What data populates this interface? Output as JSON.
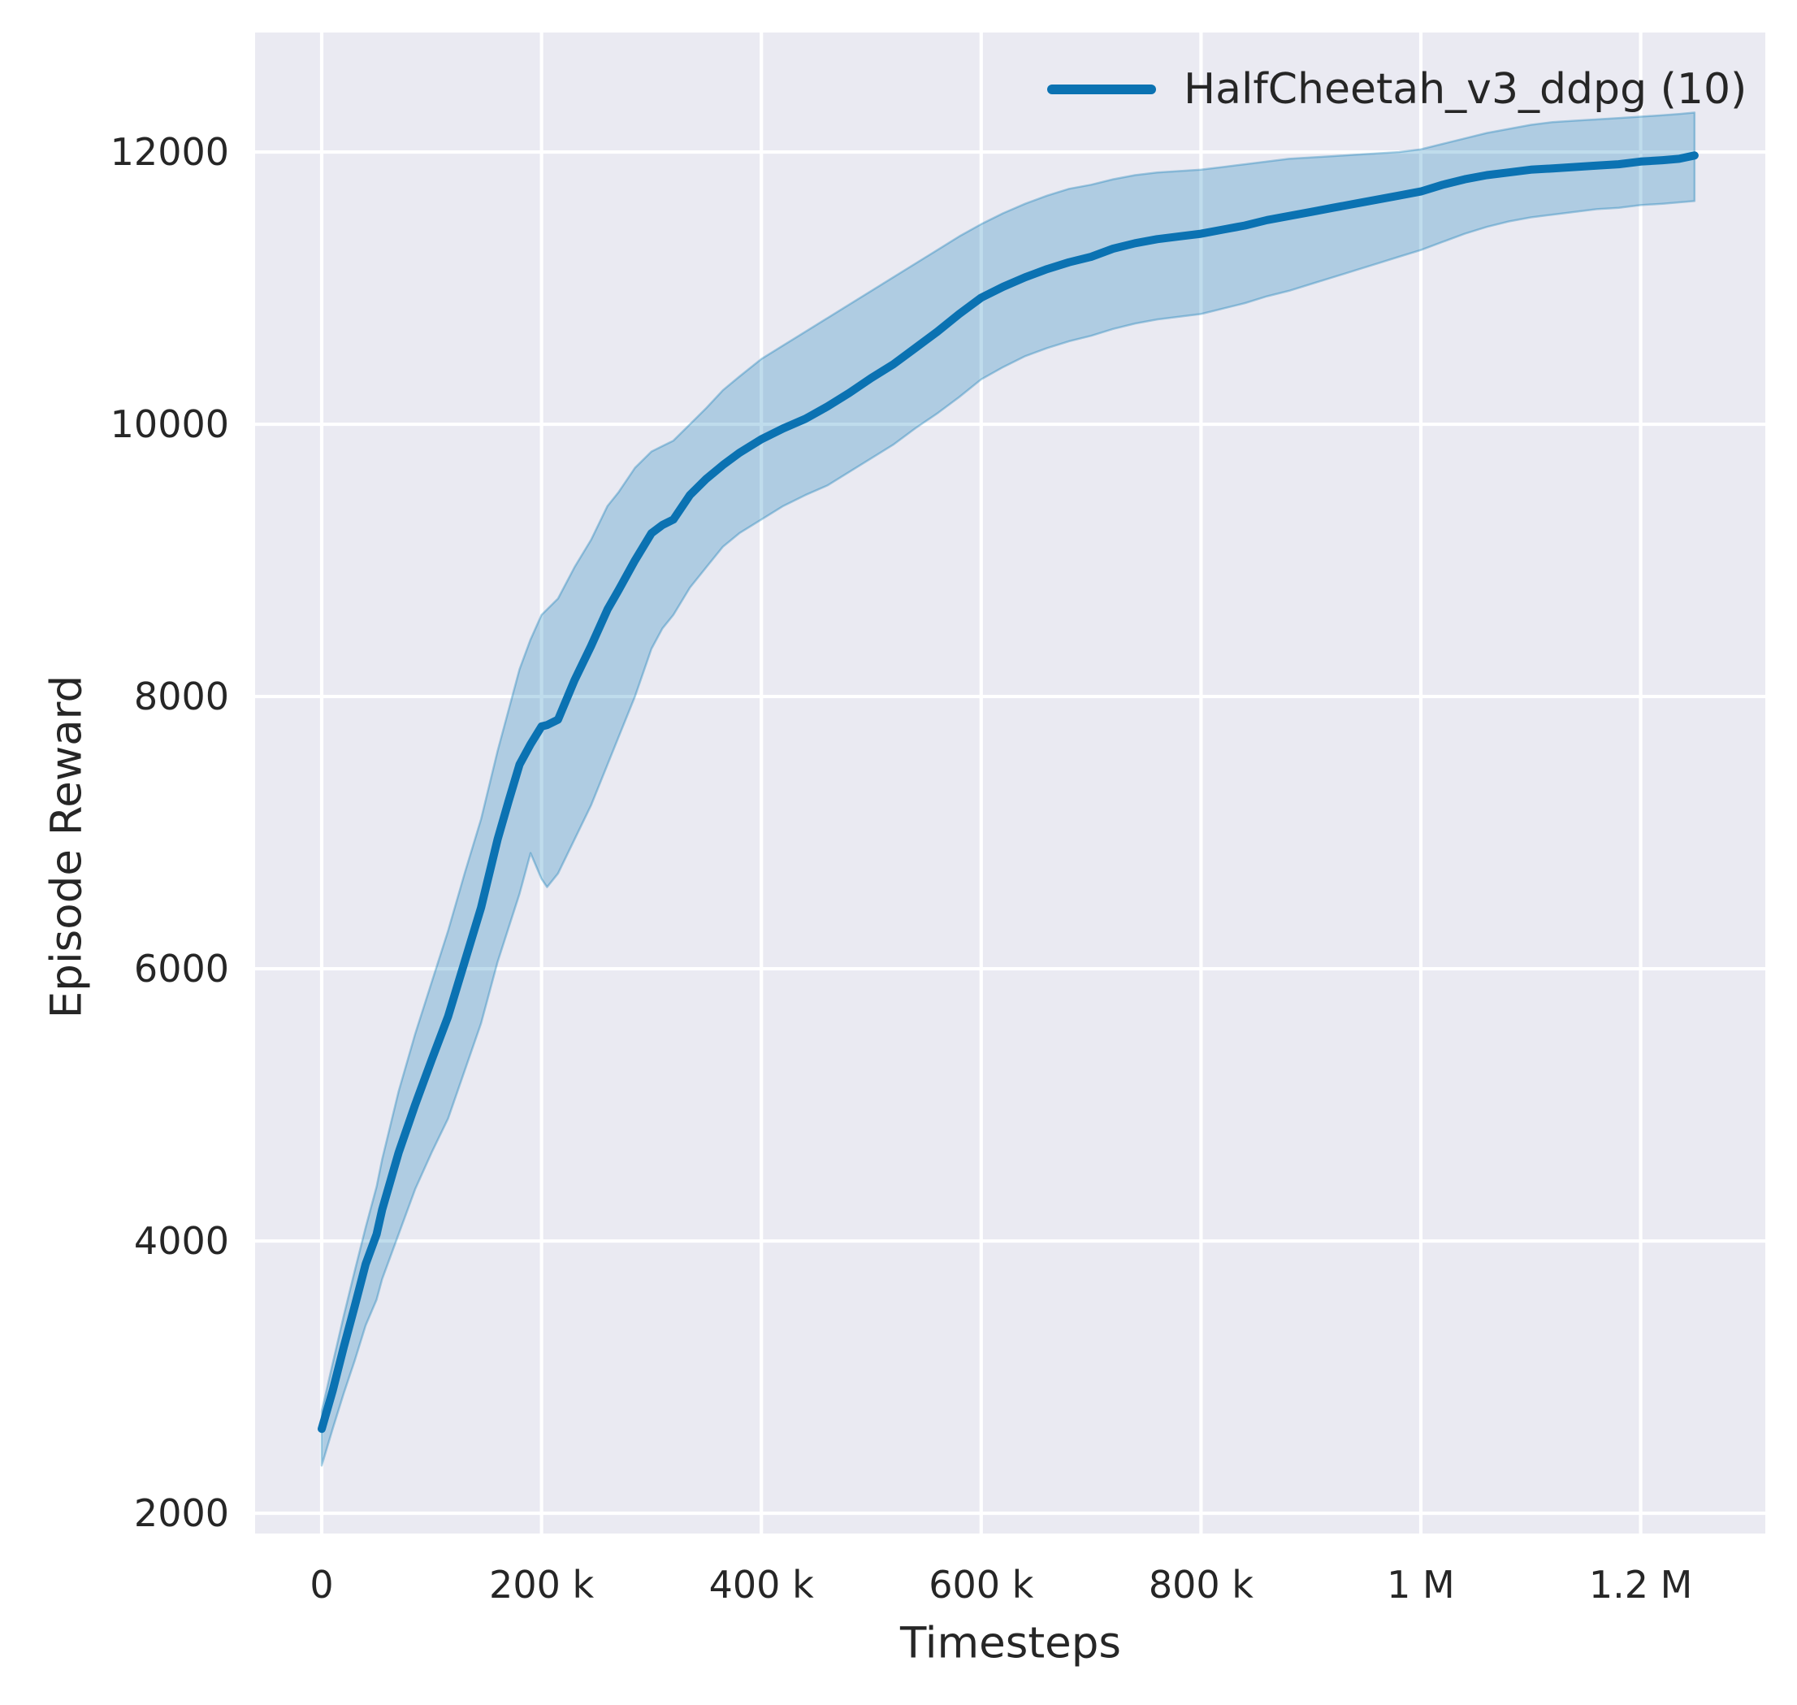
{
  "chart_data": {
    "type": "line",
    "title": "",
    "xlabel": "Timesteps",
    "ylabel": "Episode Reward",
    "legend_position": "upper right",
    "grid": true,
    "colors": {
      "plot_background": "#eaeaf2",
      "figure_background": "#ffffff",
      "grid_color": "#ffffff",
      "text_color": "#262626",
      "line_color": "#0b72b2",
      "band_fill": "rgba(1,115,178,0.25)",
      "band_edge": "rgba(1,115,178,0.32)"
    },
    "xlim": [
      -60600,
      1313400
    ],
    "ylim": [
      1851,
      12878
    ],
    "xticks": [
      {
        "value": 0,
        "label": "0"
      },
      {
        "value": 200000,
        "label": "200 k"
      },
      {
        "value": 400000,
        "label": "400 k"
      },
      {
        "value": 600000,
        "label": "600 k"
      },
      {
        "value": 800000,
        "label": "800 k"
      },
      {
        "value": 1000000,
        "label": "1 M"
      },
      {
        "value": 1200000,
        "label": "1.2 M"
      }
    ],
    "yticks": [
      {
        "value": 2000,
        "label": "2000"
      },
      {
        "value": 4000,
        "label": "4000"
      },
      {
        "value": 6000,
        "label": "6000"
      },
      {
        "value": 8000,
        "label": "8000"
      },
      {
        "value": 10000,
        "label": "10000"
      },
      {
        "value": 12000,
        "label": "12000"
      }
    ],
    "legend": [
      {
        "label": "HalfCheetah_v3_ddpg (10)",
        "color": "#0b72b2"
      }
    ],
    "series": [
      {
        "name": "HalfCheetah_v3_ddpg (10)",
        "x_thousands": [
          0,
          10,
          20,
          30,
          40,
          50,
          55,
          70,
          85,
          100,
          115,
          130,
          145,
          160,
          170,
          180,
          190,
          200,
          205,
          215,
          230,
          245,
          260,
          270,
          285,
          300,
          310,
          320,
          335,
          350,
          365,
          380,
          400,
          420,
          440,
          460,
          480,
          500,
          520,
          540,
          560,
          580,
          600,
          620,
          640,
          660,
          680,
          700,
          720,
          740,
          760,
          780,
          800,
          820,
          840,
          860,
          880,
          900,
          920,
          940,
          960,
          980,
          1000,
          1020,
          1040,
          1060,
          1080,
          1100,
          1120,
          1140,
          1160,
          1180,
          1200,
          1220,
          1235,
          1249
        ],
        "mean": [
          2620,
          2900,
          3220,
          3520,
          3830,
          4050,
          4230,
          4650,
          5000,
          5330,
          5650,
          6050,
          6450,
          6950,
          7230,
          7500,
          7650,
          7780,
          7790,
          7830,
          8120,
          8370,
          8640,
          8780,
          9000,
          9200,
          9260,
          9300,
          9480,
          9600,
          9700,
          9790,
          9890,
          9970,
          10040,
          10130,
          10230,
          10340,
          10440,
          10560,
          10680,
          10810,
          10930,
          11010,
          11080,
          11140,
          11190,
          11230,
          11290,
          11330,
          11360,
          11380,
          11400,
          11430,
          11460,
          11500,
          11530,
          11560,
          11590,
          11620,
          11650,
          11680,
          11710,
          11760,
          11800,
          11830,
          11850,
          11870,
          11880,
          11890,
          11900,
          11910,
          11930,
          11940,
          11950,
          11975
        ],
        "lower": [
          2350,
          2620,
          2880,
          3120,
          3380,
          3570,
          3720,
          4050,
          4380,
          4650,
          4900,
          5250,
          5600,
          6050,
          6300,
          6550,
          6850,
          6660,
          6600,
          6700,
          6950,
          7200,
          7500,
          7700,
          8000,
          8350,
          8500,
          8600,
          8800,
          8950,
          9100,
          9200,
          9300,
          9400,
          9480,
          9550,
          9650,
          9750,
          9850,
          9970,
          10080,
          10200,
          10330,
          10420,
          10500,
          10560,
          10610,
          10650,
          10700,
          10740,
          10770,
          10790,
          10810,
          10850,
          10890,
          10940,
          10980,
          11030,
          11080,
          11130,
          11180,
          11230,
          11280,
          11340,
          11400,
          11450,
          11490,
          11520,
          11540,
          11560,
          11580,
          11590,
          11610,
          11620,
          11630,
          11640
        ],
        "upper": [
          2750,
          3100,
          3450,
          3780,
          4100,
          4400,
          4600,
          5100,
          5520,
          5900,
          6280,
          6700,
          7100,
          7600,
          7900,
          8200,
          8420,
          8600,
          8640,
          8720,
          8950,
          9150,
          9400,
          9500,
          9680,
          9800,
          9840,
          9880,
          10000,
          10120,
          10250,
          10350,
          10480,
          10580,
          10680,
          10780,
          10880,
          10980,
          11080,
          11180,
          11280,
          11380,
          11470,
          11550,
          11620,
          11680,
          11730,
          11760,
          11800,
          11830,
          11850,
          11860,
          11870,
          11890,
          11910,
          11930,
          11950,
          11960,
          11970,
          11980,
          11990,
          12000,
          12020,
          12060,
          12100,
          12140,
          12170,
          12200,
          12220,
          12230,
          12240,
          12250,
          12260,
          12270,
          12280,
          12290
        ]
      }
    ]
  }
}
